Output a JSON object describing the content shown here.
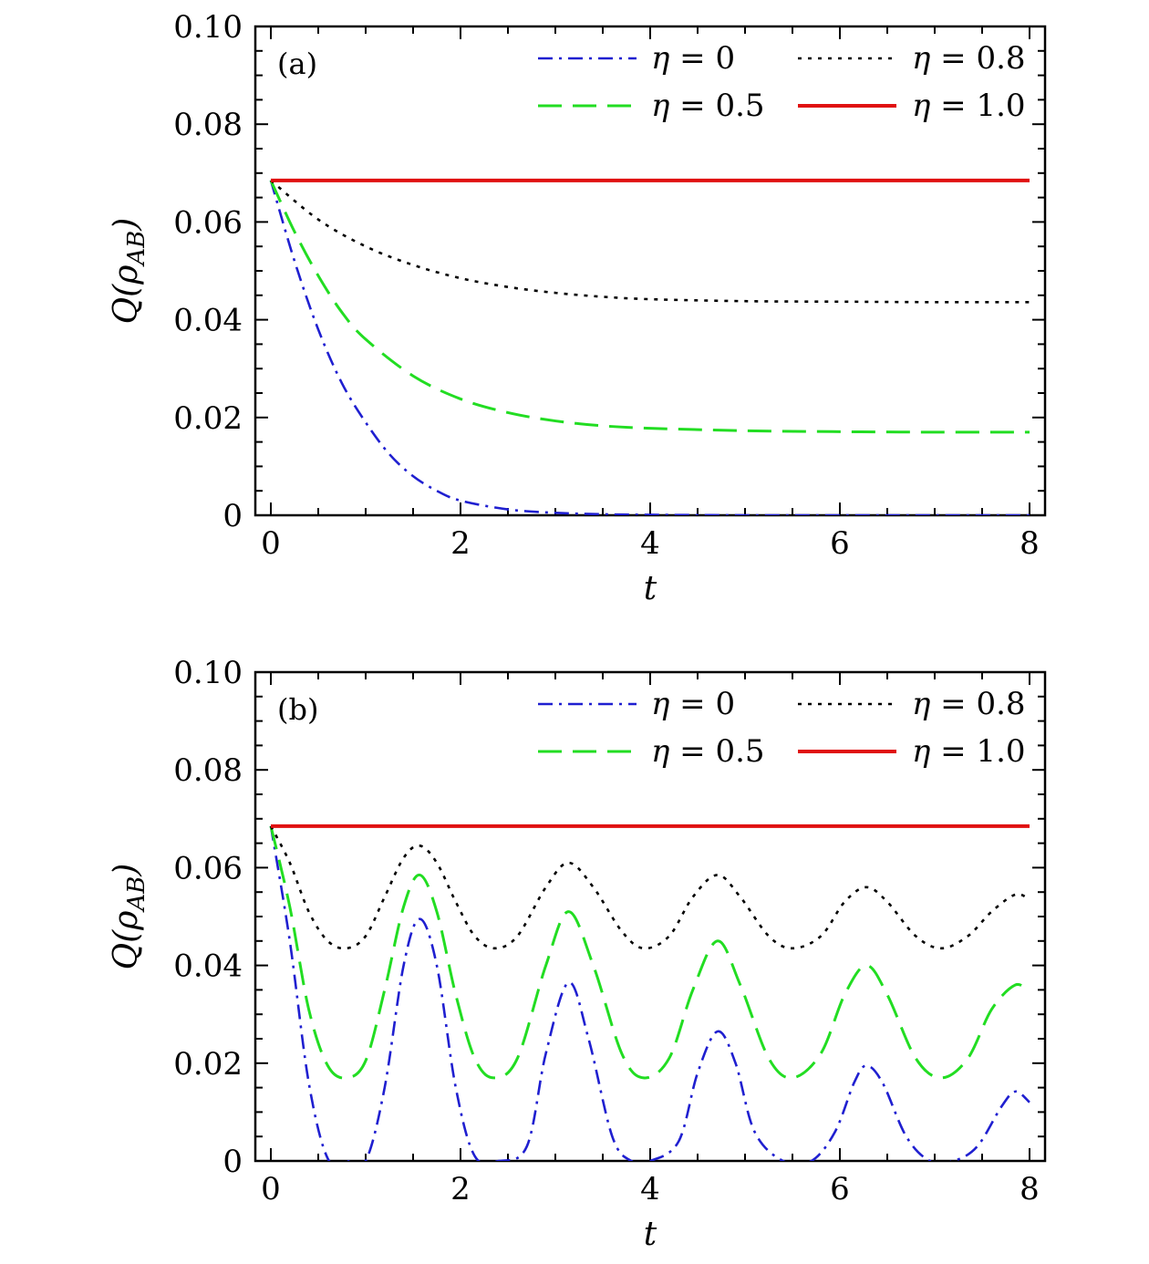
{
  "chart_data": [
    {
      "type": "line",
      "panel_label": "(a)",
      "xlabel": "t",
      "ylabel": "Q(ρAB)",
      "ylabel_main": "Q(ρ",
      "ylabel_sub": "AB",
      "ylabel_close": ")",
      "xlim": [
        0,
        8
      ],
      "ylim": [
        0,
        0.1
      ],
      "xticks": [
        "0",
        "2",
        "4",
        "6",
        "8"
      ],
      "yticks": [
        "0",
        "0.02",
        "0.04",
        "0.06",
        "0.08",
        "0.10"
      ],
      "legend_position": "top-right",
      "series": [
        {
          "name": "η = 0",
          "color": "#1f1fd0",
          "style": "dashdot",
          "x": [
            0,
            0.25,
            0.5,
            0.75,
            1,
            1.25,
            1.5,
            1.75,
            2,
            2.5,
            3,
            3.5,
            4,
            5,
            6,
            7,
            8
          ],
          "y": [
            0.0685,
            0.052,
            0.038,
            0.027,
            0.019,
            0.0125,
            0.008,
            0.005,
            0.003,
            0.0012,
            0.0005,
            0.0002,
            0.0001,
            0,
            0,
            0,
            0
          ]
        },
        {
          "name": "η = 0.5",
          "color": "#22dd22",
          "style": "dashed",
          "x": [
            0,
            0.25,
            0.5,
            0.75,
            1,
            1.5,
            2,
            2.5,
            3,
            3.5,
            4,
            5,
            6,
            7,
            8
          ],
          "y": [
            0.0685,
            0.058,
            0.049,
            0.0415,
            0.036,
            0.0285,
            0.0238,
            0.021,
            0.0193,
            0.0183,
            0.0178,
            0.0173,
            0.0171,
            0.017,
            0.017
          ]
        },
        {
          "name": "η = 0.8",
          "color": "#000000",
          "style": "dotted",
          "x": [
            0,
            0.5,
            1,
            1.5,
            2,
            2.5,
            3,
            3.5,
            4,
            5,
            6,
            7,
            8
          ],
          "y": [
            0.0685,
            0.0605,
            0.055,
            0.0512,
            0.0485,
            0.0467,
            0.0455,
            0.0447,
            0.0442,
            0.0438,
            0.0437,
            0.0436,
            0.0436
          ]
        },
        {
          "name": "η = 1.0",
          "color": "#e01010",
          "style": "solid",
          "x": [
            0,
            8
          ],
          "y": [
            0.0685,
            0.0685
          ]
        }
      ]
    },
    {
      "type": "line",
      "panel_label": "(b)",
      "xlabel": "t",
      "ylabel": "Q(ρAB)",
      "ylabel_main": "Q(ρ",
      "ylabel_sub": "AB",
      "ylabel_close": ")",
      "xlim": [
        0,
        8
      ],
      "ylim": [
        0,
        0.1
      ],
      "xticks": [
        "0",
        "2",
        "4",
        "6",
        "8"
      ],
      "yticks": [
        "0",
        "0.02",
        "0.04",
        "0.06",
        "0.08",
        "0.10"
      ],
      "legend_position": "top-right",
      "series": [
        {
          "name": "η = 0",
          "color": "#1f1fd0",
          "style": "dashdot",
          "x": [
            0,
            0.2,
            0.4,
            0.6,
            0.8,
            1.0,
            1.2,
            1.4,
            1.57,
            1.75,
            1.95,
            2.15,
            2.4,
            2.7,
            2.9,
            3.14,
            3.35,
            3.6,
            3.8,
            4.0,
            4.3,
            4.5,
            4.71,
            4.9,
            5.1,
            5.4,
            5.7,
            5.95,
            6.15,
            6.28,
            6.45,
            6.7,
            6.95,
            7.2,
            7.45,
            7.7,
            7.85,
            8.0
          ],
          "y": [
            0.0685,
            0.045,
            0.016,
            0.0005,
            0,
            0,
            0.015,
            0.04,
            0.0495,
            0.04,
            0.015,
            0.001,
            0,
            0.003,
            0.022,
            0.0365,
            0.025,
            0.005,
            0,
            0,
            0.004,
            0.018,
            0.0265,
            0.02,
            0.006,
            0,
            0,
            0.006,
            0.016,
            0.0195,
            0.016,
            0.005,
            0,
            0,
            0.003,
            0.011,
            0.0142,
            0.012
          ]
        },
        {
          "name": "η = 0.5",
          "color": "#22dd22",
          "style": "dashed",
          "x": [
            0,
            0.2,
            0.4,
            0.6,
            0.8,
            1.0,
            1.2,
            1.4,
            1.57,
            1.75,
            1.95,
            2.15,
            2.35,
            2.6,
            2.9,
            3.14,
            3.4,
            3.7,
            3.93,
            4.2,
            4.45,
            4.71,
            4.95,
            5.25,
            5.5,
            5.8,
            6.05,
            6.28,
            6.5,
            6.8,
            7.07,
            7.35,
            7.6,
            7.85,
            8.0
          ],
          "y": [
            0.0685,
            0.052,
            0.031,
            0.0195,
            0.017,
            0.0205,
            0.035,
            0.052,
            0.0585,
            0.051,
            0.034,
            0.021,
            0.017,
            0.021,
            0.04,
            0.051,
            0.04,
            0.022,
            0.017,
            0.021,
            0.035,
            0.045,
            0.036,
            0.021,
            0.017,
            0.022,
            0.034,
            0.04,
            0.034,
            0.021,
            0.017,
            0.021,
            0.031,
            0.036,
            0.0345
          ]
        },
        {
          "name": "η = 0.8",
          "color": "#000000",
          "style": "dotted",
          "x": [
            0,
            0.2,
            0.4,
            0.6,
            0.8,
            1.0,
            1.2,
            1.4,
            1.57,
            1.75,
            1.95,
            2.15,
            2.36,
            2.6,
            2.9,
            3.14,
            3.4,
            3.7,
            3.93,
            4.2,
            4.45,
            4.71,
            4.95,
            5.25,
            5.5,
            5.8,
            6.05,
            6.28,
            6.5,
            6.8,
            7.07,
            7.35,
            7.6,
            7.85,
            8.0
          ],
          "y": [
            0.0685,
            0.061,
            0.051,
            0.045,
            0.0435,
            0.046,
            0.054,
            0.062,
            0.0645,
            0.061,
            0.053,
            0.046,
            0.0435,
            0.046,
            0.056,
            0.061,
            0.056,
            0.047,
            0.0435,
            0.046,
            0.054,
            0.0585,
            0.054,
            0.046,
            0.0435,
            0.046,
            0.053,
            0.056,
            0.053,
            0.046,
            0.0435,
            0.046,
            0.051,
            0.0545,
            0.0535
          ]
        },
        {
          "name": "η = 1.0",
          "color": "#e01010",
          "style": "solid",
          "x": [
            0,
            8
          ],
          "y": [
            0.0685,
            0.0685
          ]
        }
      ]
    }
  ]
}
